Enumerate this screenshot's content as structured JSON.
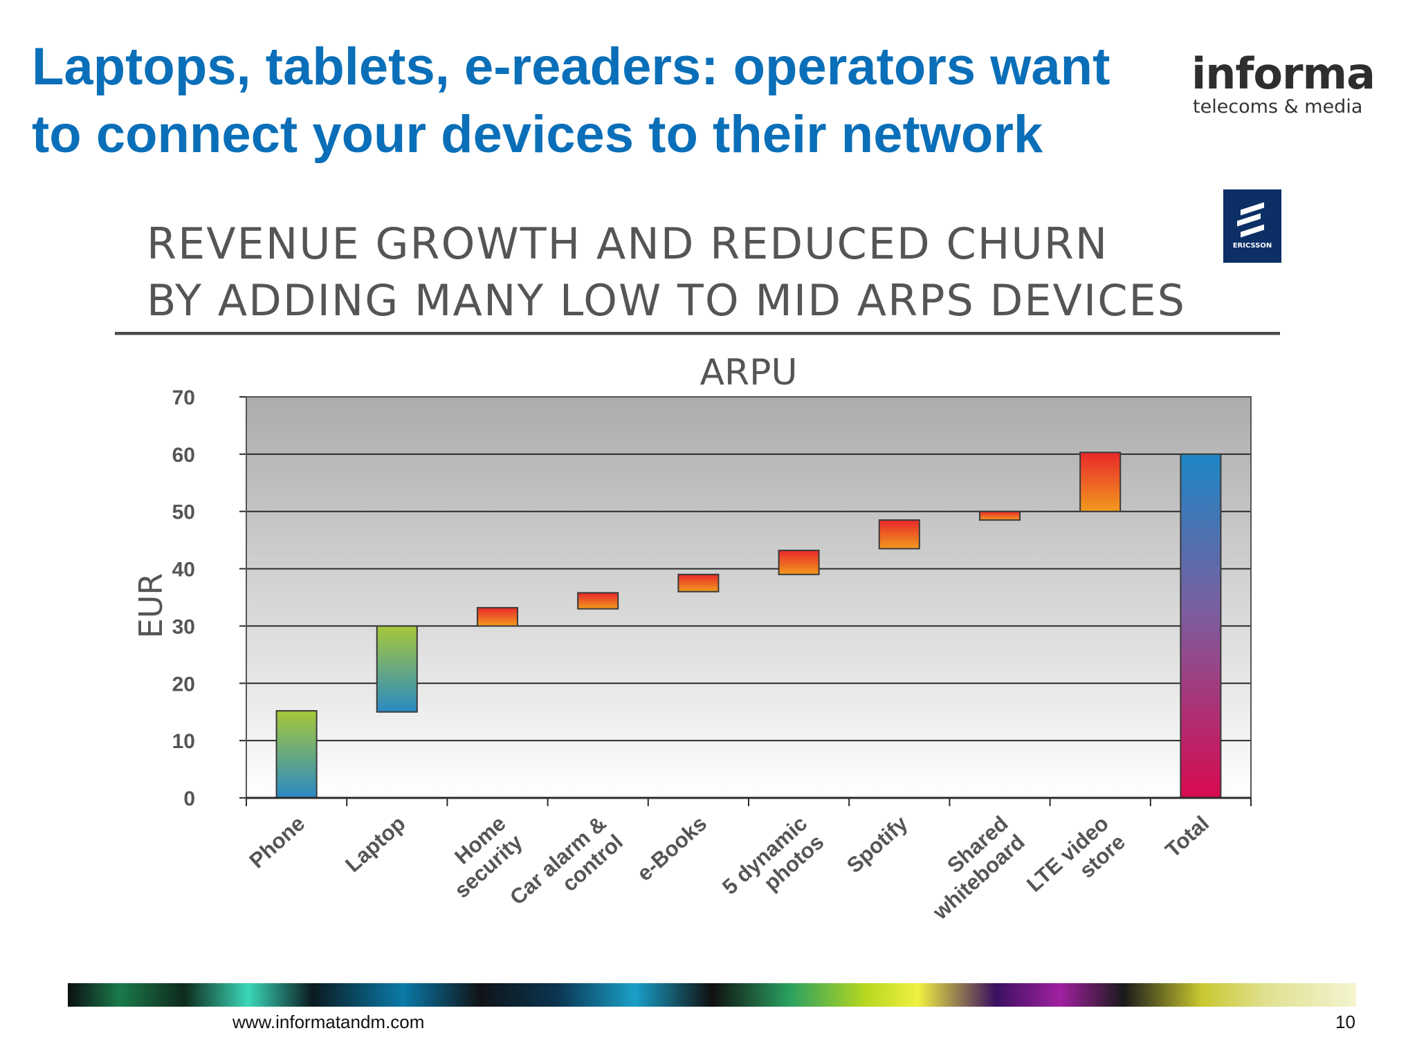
{
  "slide": {
    "title_line1": "Laptops, tablets, e-readers: operators want",
    "title_line2": "to connect your devices to their network",
    "brand_name": "informa",
    "brand_sub": "telecoms & media",
    "footer_url": "www.informatandm.com",
    "page_number": "10"
  },
  "chart_heading": {
    "line1": "REVENUE GROWTH AND REDUCED CHURN",
    "line2": "BY ADDING MANY LOW TO MID ARPS DEVICES"
  },
  "colors": {
    "title": "#0a6fb8",
    "device_top": "#a6c83a",
    "device_bottom": "#2a8ac4",
    "service_top": "#e8282a",
    "service_bottom": "#f29a1e",
    "total_top": "#1d86c4",
    "total_bottom": "#d80a50",
    "plot_top": "#acacac",
    "plot_bottom": "#ffffff"
  },
  "chart_data": {
    "type": "bar",
    "subtype": "waterfall",
    "title": "ARPU",
    "ylabel": "EUR",
    "xlabel": "",
    "ylim": [
      0,
      70
    ],
    "yticks": [
      0,
      10,
      20,
      30,
      40,
      50,
      60,
      70
    ],
    "grid": true,
    "categories": [
      "Phone",
      "Laptop",
      "Home security",
      "Car alarm & control",
      "e-Books",
      "5 dynamic photos",
      "Spotify",
      "Shared whiteboard",
      "LTE video store",
      "Total"
    ],
    "category_lines": [
      [
        "Phone"
      ],
      [
        "Laptop"
      ],
      [
        "Home",
        "security"
      ],
      [
        "Car alarm &",
        "control"
      ],
      [
        "e-Books"
      ],
      [
        "5 dynamic",
        "photos"
      ],
      [
        "Spotify"
      ],
      [
        "Shared",
        "whiteboard"
      ],
      [
        "LTE video",
        "store"
      ],
      [
        "Total"
      ]
    ],
    "kinds": [
      "device",
      "device",
      "service",
      "service",
      "service",
      "service",
      "service",
      "service",
      "service",
      "total"
    ],
    "start": [
      0,
      15,
      30,
      33,
      36,
      39,
      43.5,
      48.5,
      50,
      0
    ],
    "end": [
      15.2,
      30,
      33.2,
      35.8,
      39,
      43.2,
      48.5,
      50,
      60.3,
      60
    ]
  }
}
